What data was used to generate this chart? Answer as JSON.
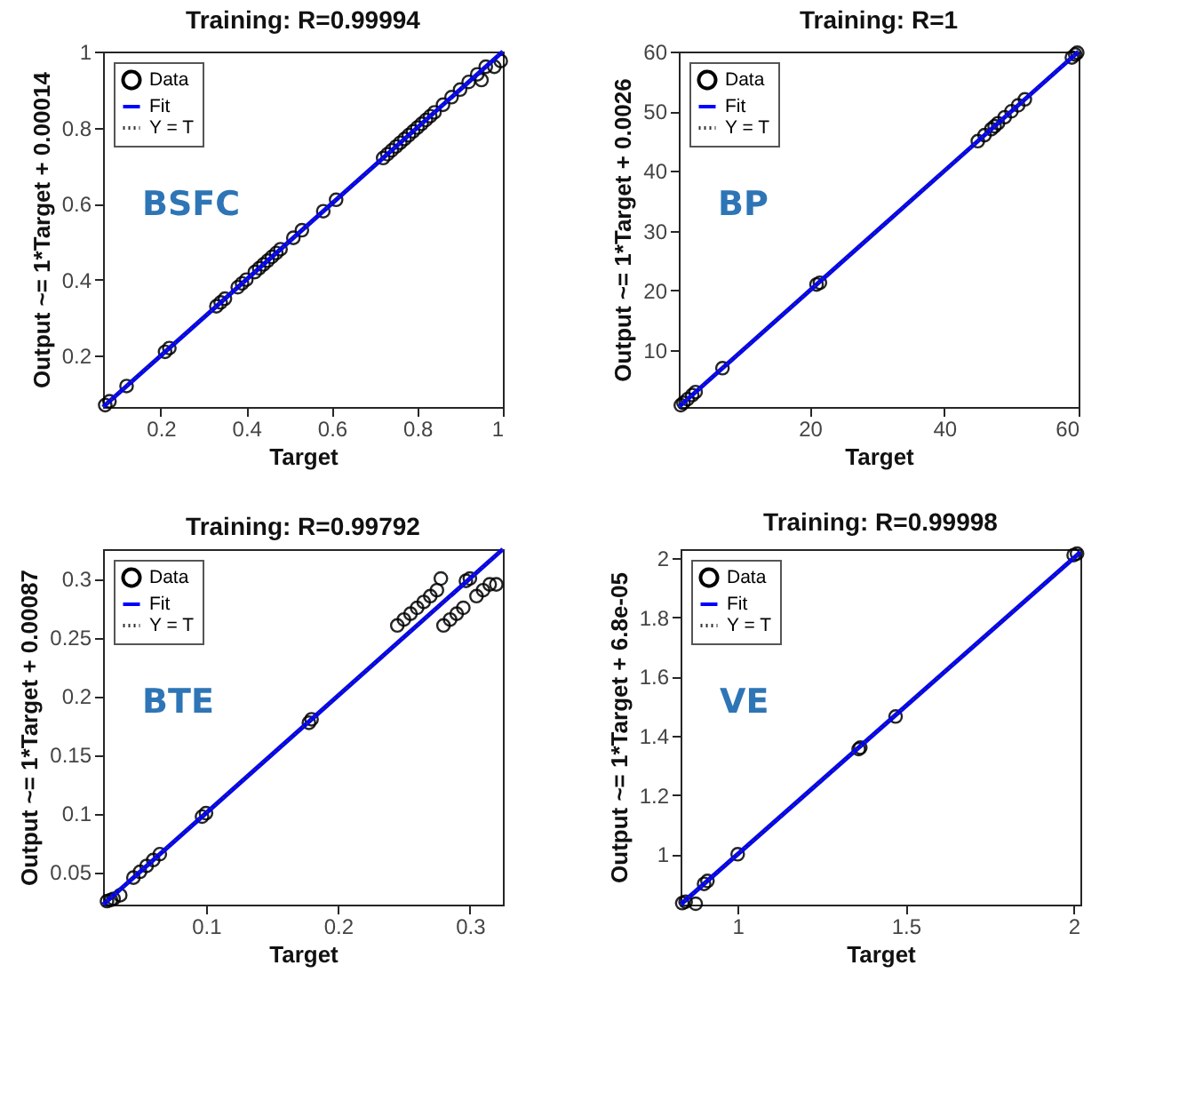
{
  "chart_data": [
    {
      "type": "scatter",
      "title": "Training: R=0.99994",
      "xlabel": "Target",
      "ylabel": "Output ~= 1*Target + 0.00014",
      "annotations": [
        "BSFC"
      ],
      "legend": "top left",
      "xlim": [
        0.065,
        1
      ],
      "ylim": [
        0.065,
        1
      ],
      "xticks": [
        0.2,
        0.4,
        0.6,
        0.8,
        1
      ],
      "yticks": [
        0.2,
        0.4,
        0.6,
        0.8,
        1
      ],
      "series": [
        {
          "name": "Data",
          "type": "scatter",
          "marker": "circle",
          "color": "#000000",
          "x": [
            0.07,
            0.08,
            0.12,
            0.21,
            0.22,
            0.33,
            0.34,
            0.35,
            0.38,
            0.39,
            0.4,
            0.42,
            0.43,
            0.44,
            0.45,
            0.46,
            0.47,
            0.48,
            0.51,
            0.53,
            0.58,
            0.61,
            0.72,
            0.73,
            0.74,
            0.75,
            0.76,
            0.77,
            0.78,
            0.79,
            0.8,
            0.81,
            0.82,
            0.83,
            0.84,
            0.86,
            0.88,
            0.9,
            0.92,
            0.94,
            0.95,
            0.96,
            0.98,
            0.995
          ],
          "values": [
            0.07,
            0.08,
            0.12,
            0.21,
            0.22,
            0.33,
            0.34,
            0.35,
            0.38,
            0.39,
            0.4,
            0.42,
            0.43,
            0.44,
            0.45,
            0.46,
            0.47,
            0.48,
            0.51,
            0.53,
            0.58,
            0.61,
            0.72,
            0.73,
            0.74,
            0.75,
            0.76,
            0.77,
            0.78,
            0.79,
            0.8,
            0.81,
            0.82,
            0.83,
            0.84,
            0.86,
            0.88,
            0.9,
            0.92,
            0.94,
            0.925,
            0.96,
            0.96,
            0.975
          ]
        },
        {
          "name": "Fit",
          "type": "line",
          "line_style": "solid",
          "color": "#0000ff",
          "x": [
            0.065,
            1
          ],
          "values": [
            0.065,
            1
          ]
        },
        {
          "name": "Y = T",
          "type": "line",
          "line_style": "dotted",
          "color": "#333333",
          "x": [
            0.065,
            1
          ],
          "values": [
            0.065,
            1
          ]
        }
      ]
    },
    {
      "type": "scatter",
      "title": "Training: R=1",
      "xlabel": "Target",
      "ylabel": "Output ~= 1*Target + 0.0026",
      "annotations": [
        "BP"
      ],
      "legend": "top left",
      "xlim": [
        0.5,
        60
      ],
      "ylim": [
        0.5,
        60
      ],
      "xticks": [
        20,
        40,
        60
      ],
      "yticks": [
        10,
        20,
        30,
        40,
        50,
        60
      ],
      "series": [
        {
          "name": "Data",
          "type": "scatter",
          "marker": "circle",
          "color": "#000000",
          "x": [
            0.8,
            1.2,
            1.8,
            2.5,
            3,
            7,
            21,
            21.5,
            45,
            46,
            47,
            47.5,
            48,
            49,
            50,
            51,
            52,
            59,
            59.5,
            59.8
          ],
          "values": [
            0.8,
            1.2,
            1.8,
            2.5,
            3,
            7,
            21,
            21.3,
            45,
            46,
            47,
            47.5,
            48,
            49,
            50,
            51,
            52,
            59,
            59.5,
            59.8
          ]
        },
        {
          "name": "Fit",
          "type": "line",
          "line_style": "solid",
          "color": "#0000ff",
          "x": [
            0.5,
            60
          ],
          "values": [
            0.5,
            60
          ]
        },
        {
          "name": "Y = T",
          "type": "line",
          "line_style": "dotted",
          "color": "#333333",
          "x": [
            0.5,
            60
          ],
          "values": [
            0.5,
            60
          ]
        }
      ]
    },
    {
      "type": "scatter",
      "title": "Training: R=0.99792",
      "xlabel": "Target",
      "ylabel": "Output ~= 1*Target + 0.00087",
      "annotations": [
        "BTE"
      ],
      "legend": "top left",
      "xlim": [
        0.022,
        0.325
      ],
      "ylim": [
        0.022,
        0.325
      ],
      "xticks": [
        0.1,
        0.2,
        0.3
      ],
      "yticks": [
        0.05,
        0.1,
        0.15,
        0.2,
        0.25,
        0.3
      ],
      "series": [
        {
          "name": "Data",
          "type": "scatter",
          "marker": "circle",
          "color": "#000000",
          "x": [
            0.025,
            0.028,
            0.03,
            0.035,
            0.045,
            0.05,
            0.055,
            0.06,
            0.065,
            0.097,
            0.1,
            0.178,
            0.18,
            0.245,
            0.25,
            0.255,
            0.26,
            0.265,
            0.27,
            0.275,
            0.278,
            0.28,
            0.285,
            0.29,
            0.295,
            0.297,
            0.3,
            0.305,
            0.31,
            0.315,
            0.32
          ],
          "values": [
            0.025,
            0.026,
            0.027,
            0.03,
            0.045,
            0.05,
            0.055,
            0.06,
            0.065,
            0.097,
            0.1,
            0.177,
            0.18,
            0.26,
            0.265,
            0.27,
            0.275,
            0.28,
            0.285,
            0.29,
            0.3,
            0.26,
            0.265,
            0.27,
            0.275,
            0.298,
            0.3,
            0.285,
            0.29,
            0.295,
            0.295
          ]
        },
        {
          "name": "Fit",
          "type": "line",
          "line_style": "solid",
          "color": "#0000ff",
          "x": [
            0.022,
            0.325
          ],
          "values": [
            0.022,
            0.325
          ]
        },
        {
          "name": "Y = T",
          "type": "line",
          "line_style": "dotted",
          "color": "#333333",
          "x": [
            0.022,
            0.325
          ],
          "values": [
            0.022,
            0.325
          ]
        }
      ]
    },
    {
      "type": "scatter",
      "title": "Training: R=0.99998",
      "xlabel": "Target",
      "ylabel": "Output ~= 1*Target + 6.8e-05",
      "annotations": [
        "VE"
      ],
      "legend": "top left",
      "xlim": [
        0.83,
        2.02
      ],
      "ylim": [
        0.83,
        2.03
      ],
      "xticks": [
        1,
        1.5,
        2
      ],
      "yticks": [
        1,
        1.2,
        1.4,
        1.6,
        1.8,
        2
      ],
      "series": [
        {
          "name": "Data",
          "type": "scatter",
          "marker": "circle",
          "color": "#000000",
          "x": [
            0.835,
            0.845,
            0.875,
            0.9,
            0.91,
            1,
            1.36,
            1.365,
            1.47,
            2,
            2.01
          ],
          "values": [
            0.835,
            0.84,
            0.833,
            0.9,
            0.91,
            1,
            1.355,
            1.36,
            1.465,
            2.01,
            2.015
          ]
        },
        {
          "name": "Fit",
          "type": "line",
          "line_style": "solid",
          "color": "#0000ff",
          "x": [
            0.83,
            2.02
          ],
          "values": [
            0.83,
            2.02
          ]
        },
        {
          "name": "Y = T",
          "type": "line",
          "line_style": "dotted",
          "color": "#333333",
          "x": [
            0.83,
            2.02
          ],
          "values": [
            0.83,
            2.02
          ]
        }
      ]
    }
  ]
}
